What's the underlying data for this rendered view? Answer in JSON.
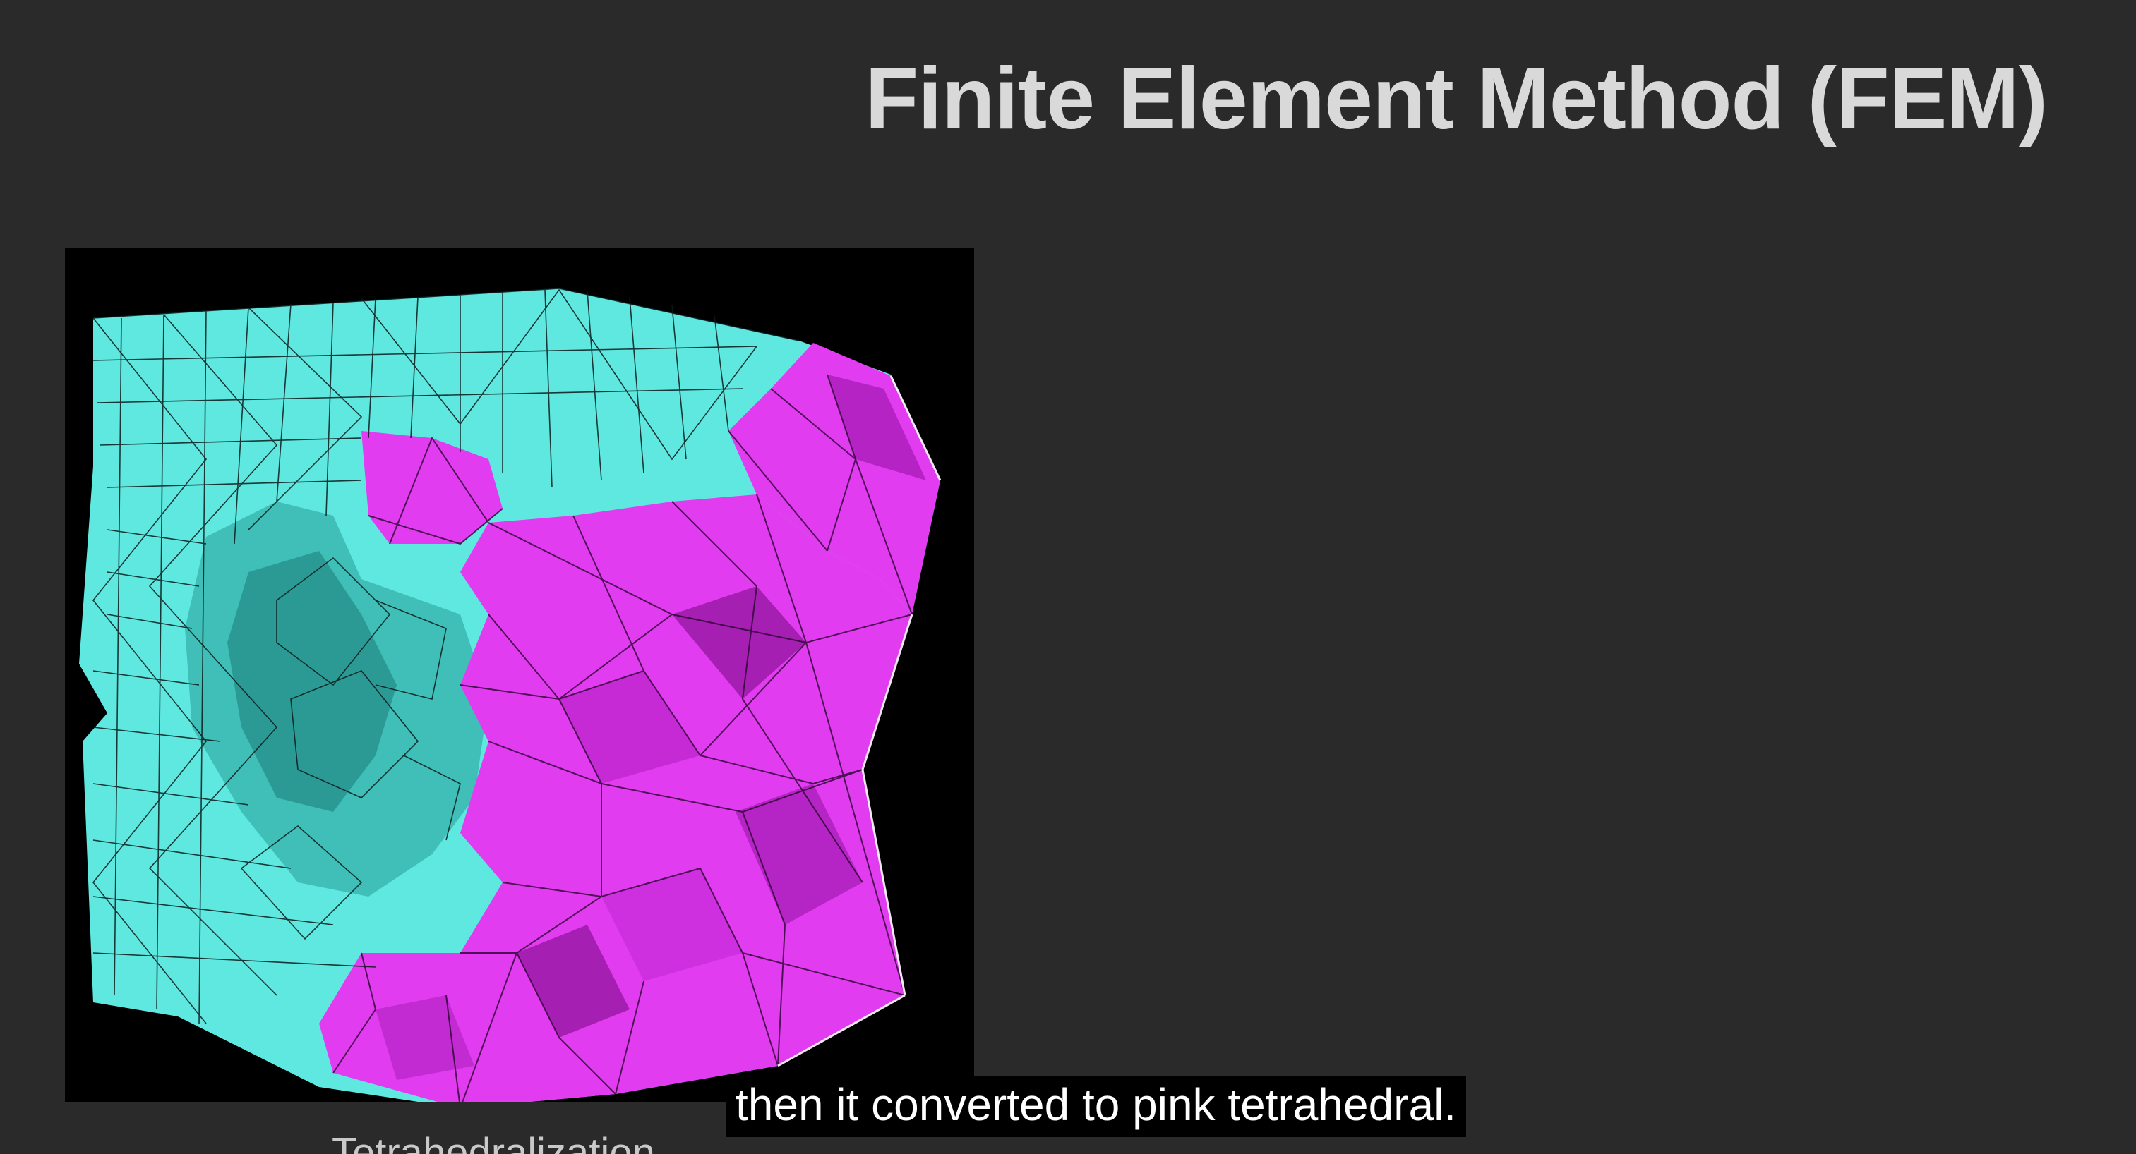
{
  "slide": {
    "title": "Finite Element Method (FEM)",
    "caption_partial": "Tetrahedralization",
    "subtitle": "then it converted to pink tetrahedral."
  },
  "figure": {
    "description_colors": {
      "mesh_surface": "#5fe8e0",
      "tetra_cut": "#e23cf0",
      "tetra_cut_dark": "#a51fb2",
      "edges": "#0b1a1a"
    }
  }
}
